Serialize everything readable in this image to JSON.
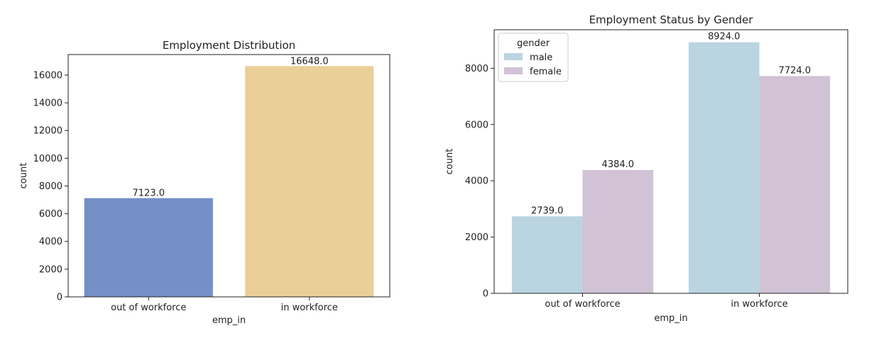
{
  "chart_data": [
    {
      "type": "bar",
      "title": "Employment Distribution",
      "xlabel": "emp_in",
      "ylabel": "count",
      "categories": [
        "out of workforce",
        "in workforce"
      ],
      "values": [
        7123,
        16648
      ],
      "value_labels": [
        "7123.0",
        "16648.0"
      ],
      "colors": [
        "#7490c7",
        "#eacf98"
      ],
      "ylim": [
        0,
        17481
      ],
      "yticks": [
        0,
        2000,
        4000,
        6000,
        8000,
        10000,
        12000,
        14000,
        16000
      ],
      "grid": false
    },
    {
      "type": "bar",
      "title": "Employment Status by Gender",
      "xlabel": "emp_in",
      "ylabel": "count",
      "categories": [
        "out of workforce",
        "in workforce"
      ],
      "series": [
        {
          "name": "male",
          "values": [
            2739,
            8924
          ],
          "value_labels": [
            "2739.0",
            "8924.0"
          ],
          "color": "#bad5e1"
        },
        {
          "name": "female",
          "values": [
            4384,
            7724
          ],
          "value_labels": [
            "4384.0",
            "7724.0"
          ],
          "color": "#d2c2d6"
        }
      ],
      "legend_title": "gender",
      "legend_position": "top-left",
      "ylim": [
        0,
        9370
      ],
      "yticks": [
        0,
        2000,
        4000,
        6000,
        8000
      ],
      "grid": false
    }
  ]
}
